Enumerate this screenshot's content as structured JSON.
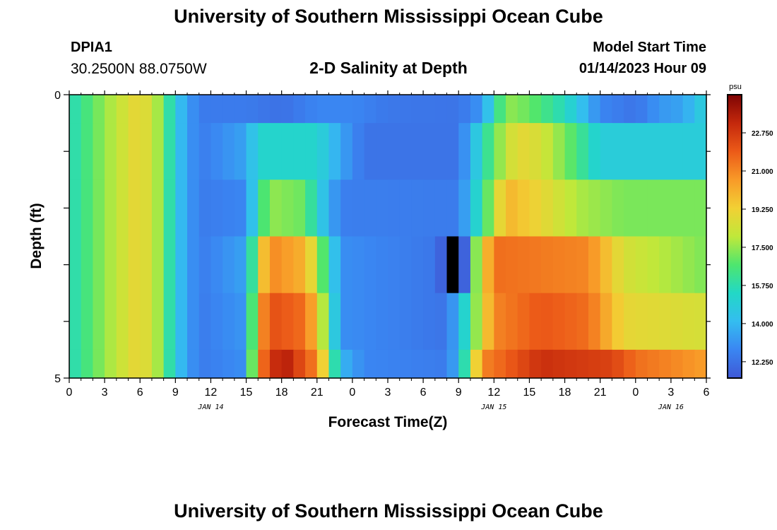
{
  "page": {
    "title": "University of Southern Mississippi Ocean Cube",
    "bottom_title": "University of Southern Mississippi Ocean Cube",
    "station_id": "DPIA1",
    "station_coords": "30.2500N  88.0750W",
    "plot_title": "2-D Salinity at Depth",
    "start_time_label": "Model Start Time",
    "start_time_value": "01/14/2023 Hour 09"
  },
  "colors": {
    "scale": [
      "#3f58d6",
      "#3a86f2",
      "#34bdf0",
      "#22d8c6",
      "#4ee66e",
      "#c0e83a",
      "#f2d034",
      "#f89a28",
      "#ec5a18",
      "#c4280c",
      "#7e0404"
    ]
  },
  "chart_data": {
    "type": "heatmap",
    "title": "2-D Salinity at Depth",
    "xlabel": "Forecast Time(Z)",
    "ylabel": "Depth (ft)",
    "x_ticks": [
      "0",
      "3",
      "6",
      "9",
      "12",
      "15",
      "18",
      "21",
      "0",
      "3",
      "6",
      "9",
      "12",
      "15",
      "18",
      "21",
      "0",
      "3",
      "6"
    ],
    "x_day_labels": [
      {
        "label": "JAN 14",
        "at_hour": 12
      },
      {
        "label": "JAN 15",
        "at_hour": 36
      },
      {
        "label": "JAN 16",
        "at_hour": 51
      }
    ],
    "x_range_hours": [
      0,
      54
    ],
    "y_ticks": [
      "0",
      "5"
    ],
    "y_range": [
      0,
      5
    ],
    "colorbar": {
      "unit": "psu",
      "range": [
        11.5,
        24.5
      ],
      "tick_labels": [
        "12.250",
        "14.000",
        "15.750",
        "17.500",
        "19.250",
        "21.000",
        "22.750"
      ],
      "tick_values": [
        12.25,
        14.0,
        15.75,
        17.5,
        19.25,
        21.0,
        22.75
      ]
    },
    "depth_bands": [
      0.0,
      0.5,
      1.5,
      2.5,
      3.5,
      4.5,
      5.0
    ],
    "columns_per_band": 54,
    "keypoints": [
      [
        [
          0,
          15.5
        ],
        [
          3,
          17.5
        ],
        [
          6,
          19.2
        ],
        [
          8,
          17.2
        ],
        [
          9,
          14.5
        ],
        [
          11,
          12.5
        ],
        [
          15,
          12.5
        ],
        [
          18,
          12.2
        ],
        [
          21,
          12.8
        ],
        [
          24,
          12.8
        ],
        [
          27,
          12.4
        ],
        [
          33,
          12.3
        ],
        [
          35,
          13.2
        ],
        [
          37,
          17.5
        ],
        [
          39,
          17.0
        ],
        [
          42,
          15.5
        ],
        [
          45,
          12.8
        ],
        [
          48,
          12.3
        ],
        [
          50,
          13.2
        ],
        [
          52,
          13.5
        ],
        [
          54,
          15.0
        ]
      ],
      [
        [
          0,
          15.5
        ],
        [
          3,
          17.5
        ],
        [
          6,
          19.2
        ],
        [
          8,
          17.2
        ],
        [
          9,
          14.5
        ],
        [
          11,
          12.5
        ],
        [
          15,
          13.5
        ],
        [
          16,
          15.2
        ],
        [
          21,
          15.2
        ],
        [
          23,
          13.5
        ],
        [
          25,
          12.3
        ],
        [
          33,
          12.3
        ],
        [
          34,
          13.8
        ],
        [
          36,
          17.0
        ],
        [
          38,
          19.0
        ],
        [
          40,
          18.5
        ],
        [
          43,
          16.5
        ],
        [
          45,
          14.8
        ],
        [
          54,
          14.8
        ]
      ],
      [
        [
          0,
          15.5
        ],
        [
          3,
          17.5
        ],
        [
          6,
          19.2
        ],
        [
          8,
          17.2
        ],
        [
          9,
          14.5
        ],
        [
          11,
          12.5
        ],
        [
          15,
          12.8
        ],
        [
          16,
          15.8
        ],
        [
          17,
          17.5
        ],
        [
          20,
          17.0
        ],
        [
          21,
          15.0
        ],
        [
          23,
          12.6
        ],
        [
          33,
          12.5
        ],
        [
          35,
          16.0
        ],
        [
          37,
          20.0
        ],
        [
          40,
          19.0
        ],
        [
          43,
          17.8
        ],
        [
          47,
          17.2
        ],
        [
          54,
          17.2
        ]
      ],
      [
        [
          0,
          15.5
        ],
        [
          3,
          17.5
        ],
        [
          6,
          19.2
        ],
        [
          8,
          17.2
        ],
        [
          9,
          14.5
        ],
        [
          11,
          12.5
        ],
        [
          15,
          13.5
        ],
        [
          16,
          18.5
        ],
        [
          17,
          21.0
        ],
        [
          20,
          20.0
        ],
        [
          21,
          18.0
        ],
        [
          23,
          13.0
        ],
        [
          32,
          12.3
        ],
        [
          34,
          16.0
        ],
        [
          36,
          21.5
        ],
        [
          44,
          21.0
        ],
        [
          47,
          18.5
        ],
        [
          54,
          17.2
        ]
      ],
      [
        [
          0,
          15.5
        ],
        [
          3,
          17.5
        ],
        [
          6,
          19.2
        ],
        [
          8,
          17.2
        ],
        [
          9,
          14.5
        ],
        [
          11,
          12.5
        ],
        [
          15,
          13.2
        ],
        [
          16,
          20.0
        ],
        [
          17,
          22.2
        ],
        [
          20,
          21.5
        ],
        [
          21,
          19.5
        ],
        [
          23,
          13.0
        ],
        [
          32,
          12.3
        ],
        [
          33,
          14.0
        ],
        [
          36,
          21.0
        ],
        [
          40,
          22.0
        ],
        [
          44,
          21.5
        ],
        [
          47,
          19.0
        ],
        [
          54,
          18.5
        ]
      ],
      [
        [
          0,
          15.5
        ],
        [
          3,
          17.5
        ],
        [
          6,
          19.2
        ],
        [
          8,
          17.2
        ],
        [
          9,
          14.5
        ],
        [
          11,
          12.5
        ],
        [
          15,
          13.0
        ],
        [
          16,
          21.0
        ],
        [
          18,
          23.8
        ],
        [
          21,
          21.0
        ],
        [
          23,
          14.0
        ],
        [
          25,
          12.8
        ],
        [
          32,
          12.5
        ],
        [
          33,
          14.0
        ],
        [
          35,
          21.0
        ],
        [
          40,
          23.0
        ],
        [
          46,
          22.5
        ],
        [
          48,
          21.5
        ],
        [
          54,
          20.5
        ]
      ]
    ],
    "anomaly": {
      "depth_band": 3,
      "hours": [
        31,
        32,
        33
      ],
      "values": [
        11.8,
        5.0,
        11.8
      ]
    }
  }
}
